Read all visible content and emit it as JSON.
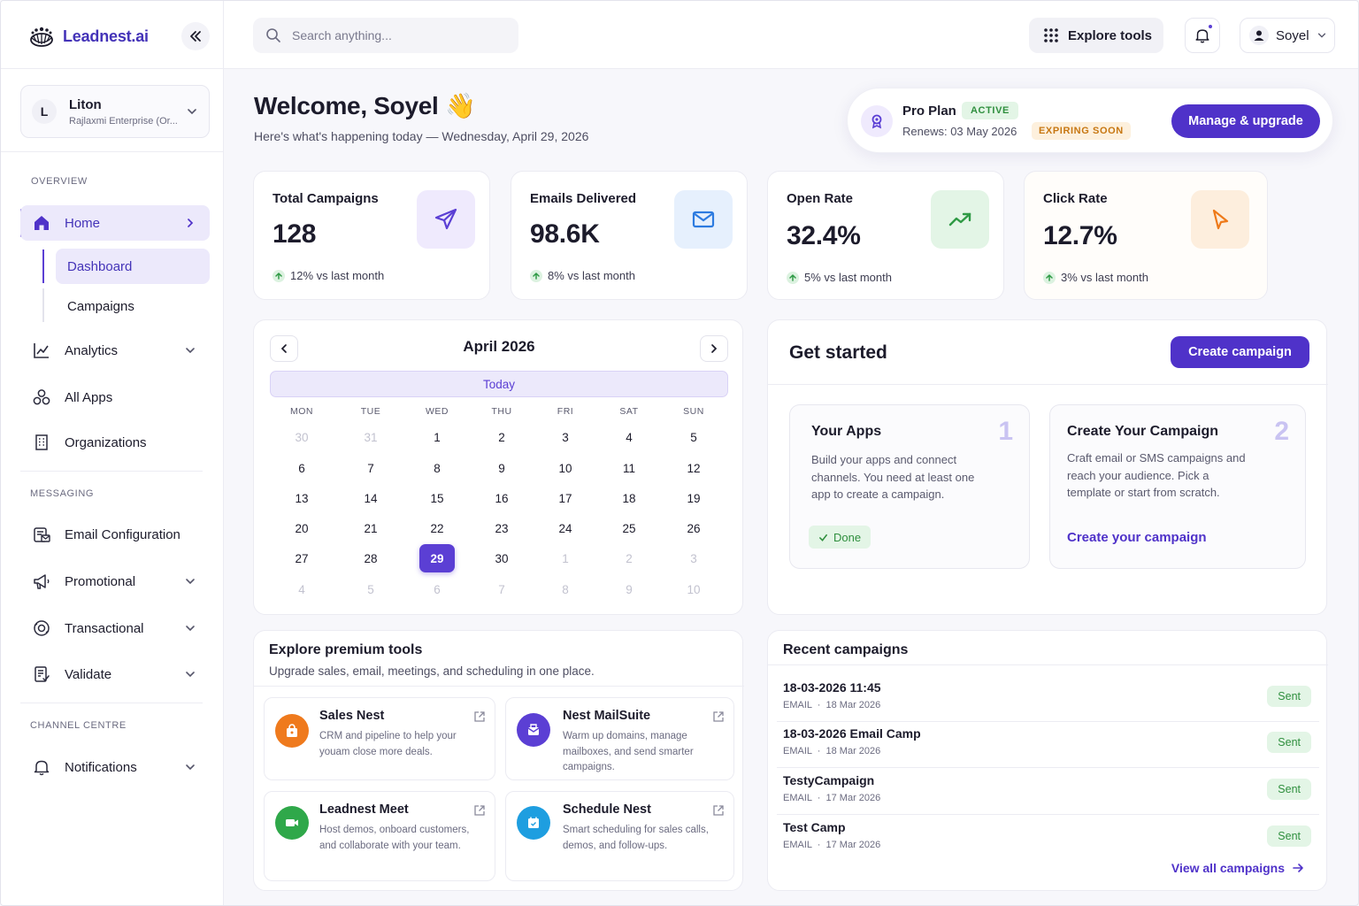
{
  "brand": {
    "name": "Leadnest.ai"
  },
  "org": {
    "initial": "L",
    "name": "Liton",
    "subtitle": "Rajlaxmi Enterprise (Or..."
  },
  "sidebar": {
    "overview_label": "OVERVIEW",
    "home": "Home",
    "home_sub": [
      "Dashboard",
      "Campaigns"
    ],
    "analytics": "Analytics",
    "all_apps": "All Apps",
    "organizations": "Organizations",
    "messaging_label": "MESSAGING",
    "email_config": "Email Configuration",
    "promotional": "Promotional",
    "transactional": "Transactional",
    "validate": "Validate",
    "channel_label": "CHANNEL CENTRE",
    "notifications": "Notifications"
  },
  "topbar": {
    "search_placeholder": "Search anything...",
    "explore_label": "Explore tools",
    "user_name": "Soyel"
  },
  "welcome": {
    "title": "Welcome, Soyel 👋",
    "subtitle": "Here's what's happening today — Wednesday, April 29, 2026"
  },
  "plan": {
    "name": "Pro Plan",
    "status": "ACTIVE",
    "renews": "Renews: 03 May 2026",
    "warning": "EXPIRING SOON",
    "button": "Manage & upgrade"
  },
  "stats": [
    {
      "title": "Total Campaigns",
      "value": "128",
      "trend": "12% vs last month",
      "icon": "paper-plane-icon",
      "color": "#5b3fd4",
      "bg": "#efeafd"
    },
    {
      "title": "Emails Delivered",
      "value": "98.6K",
      "trend": "8% vs last month",
      "icon": "envelope-icon",
      "color": "#2d7be0",
      "bg": "#e6f0fd"
    },
    {
      "title": "Open Rate",
      "value": "32.4%",
      "trend": "5% vs last month",
      "icon": "trend-up-icon",
      "color": "#2f9a45",
      "bg": "#e3f5e6"
    },
    {
      "title": "Click Rate",
      "value": "12.7%",
      "trend": "3% vs last month",
      "icon": "cursor-icon",
      "color": "#ee7a1a",
      "bg": "#fdeedd"
    }
  ],
  "calendar": {
    "title": "April 2026",
    "today_label": "Today",
    "dow": [
      "MON",
      "TUE",
      "WED",
      "THU",
      "FRI",
      "SAT",
      "SUN"
    ],
    "days": [
      [
        "30",
        "31",
        "1",
        "2",
        "3",
        "4",
        "5"
      ],
      [
        "6",
        "7",
        "8",
        "9",
        "10",
        "11",
        "12"
      ],
      [
        "13",
        "14",
        "15",
        "16",
        "17",
        "18",
        "19"
      ],
      [
        "20",
        "21",
        "22",
        "23",
        "24",
        "25",
        "26"
      ],
      [
        "27",
        "28",
        "29",
        "30",
        "1",
        "2",
        "3"
      ],
      [
        "4",
        "5",
        "6",
        "7",
        "8",
        "9",
        "10"
      ]
    ],
    "selected_day": "29"
  },
  "get_started": {
    "title": "Get started",
    "button": "Create campaign",
    "steps": [
      {
        "title": "Your Apps",
        "number": "1",
        "description": "Build your apps and connect channels. You need at least one app to create a campaign.",
        "badge": "Done"
      },
      {
        "title": "Create Your Campaign",
        "number": "2",
        "description": "Craft email or SMS campaigns and reach your audience. Pick a template or start from scratch.",
        "link": "Create your campaign"
      }
    ]
  },
  "premium": {
    "title": "Explore premium tools",
    "subtitle": "Upgrade sales, email, meetings, and scheduling in one place.",
    "tools": [
      {
        "name": "Sales Nest",
        "description": "CRM and pipeline to help your youam close more deals.",
        "icon": "shopping-bag-icon",
        "color": "#ef7a1d"
      },
      {
        "name": "Nest MailSuite",
        "description": "Warm up domains, manage mailboxes, and send smarter campaigns.",
        "icon": "mailbox-icon",
        "color": "#5b3fd4"
      },
      {
        "name": "Leadnest Meet",
        "description": "Host demos, onboard customers, and collaborate with your team.",
        "icon": "video-icon",
        "color": "#2fa84a"
      },
      {
        "name": "Schedule Nest",
        "description": "Smart scheduling for sales calls, demos, and follow-ups.",
        "icon": "calendar-icon",
        "color": "#1e9ee0"
      }
    ]
  },
  "recent": {
    "title": "Recent campaigns",
    "rows": [
      {
        "name": "18-03-2026 11:45",
        "channel": "EMAIL",
        "date": "18 Mar 2026",
        "status": "Sent"
      },
      {
        "name": "18-03-2026 Email Camp",
        "channel": "EMAIL",
        "date": "18 Mar 2026",
        "status": "Sent"
      },
      {
        "name": "TestyCampaign",
        "channel": "EMAIL",
        "date": "17 Mar 2026",
        "status": "Sent"
      },
      {
        "name": "Test Camp",
        "channel": "EMAIL",
        "date": "17 Mar 2026",
        "status": "Sent"
      }
    ],
    "view_all": "View all campaigns"
  }
}
